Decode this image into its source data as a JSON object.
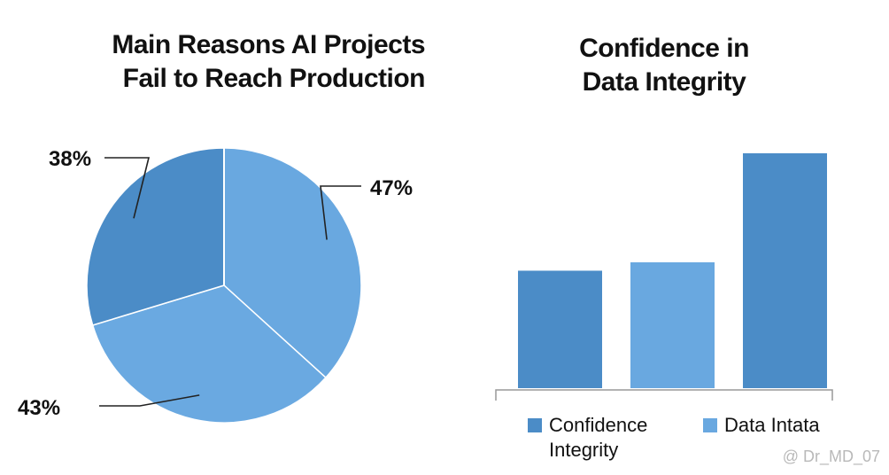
{
  "colors": {
    "dark_blue": "#4b8cc7",
    "light_blue": "#69a8e0",
    "mid_blue": "#5e9dd6",
    "axis": "#999999"
  },
  "watermark": "@ Dr_MD_07",
  "chart_data": [
    {
      "type": "pie",
      "title_lines": [
        "Main Reasons AI Projects",
        "Fail to Reach Production"
      ],
      "slices": [
        {
          "label": "47%",
          "value": 47,
          "color": "#69a8e0"
        },
        {
          "label": "43%",
          "value": 43,
          "color": "#6aa9e1"
        },
        {
          "label": "38%",
          "value": 38,
          "color": "#4b8cc7"
        }
      ]
    },
    {
      "type": "bar",
      "title_lines": [
        "Confidence in",
        "Data Integrity"
      ],
      "values": [
        28,
        30,
        56
      ],
      "colors": [
        "#4b8cc7",
        "#69a8e0",
        "#4b8cc7"
      ],
      "ylim": [
        0,
        60
      ],
      "legend": [
        {
          "label": "Confidence Integrity",
          "color": "#4b8cc7"
        },
        {
          "label": "Data Intata",
          "color": "#69a8e0"
        }
      ],
      "legend_position": "bottom"
    }
  ]
}
